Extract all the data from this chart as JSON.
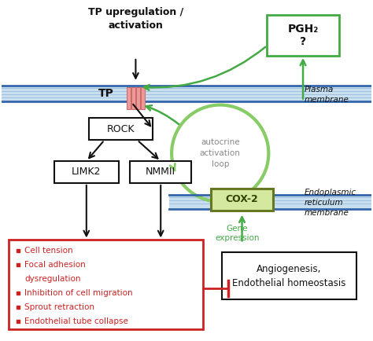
{
  "bg_color": "#ffffff",
  "mem_fill": "#c8dff0",
  "mem_stripe": "#a0c0e0",
  "mem_border": "#3366aa",
  "green": "#44aa44",
  "light_green": "#88cc66",
  "dark_olive": "#667722",
  "red": "#cc2222",
  "black": "#111111",
  "tp_pink": "#ee9999",
  "tp_pink_border": "#cc6666",
  "cox2_fill": "#d4e8a0",
  "cox2_border": "#667722",
  "title": "TP upregulation /\nactivation",
  "pgh2_label": "PGH₂\n?",
  "tp_label": "TP",
  "rock_label": "ROCK",
  "limk2_label": "LIMK2",
  "nmmii_label": "NMMII",
  "cox2_label": "COX-2",
  "autocrine_label": "autocrine\nactivation\nloop",
  "gene_expr_label": "Gene\nexpression",
  "pm_label": "Plasma\nmembrane",
  "er_label": "Endoplasmic\nreticulum\nmembrane",
  "red_items": [
    "Cell tension",
    "Focal adhesion\ndysregulation",
    "Inhibition of cell migration",
    "Sprout retraction",
    "Endothelial tube collapse"
  ],
  "angio_label": "Angiogenesis,\nEndothelial homeostasis"
}
